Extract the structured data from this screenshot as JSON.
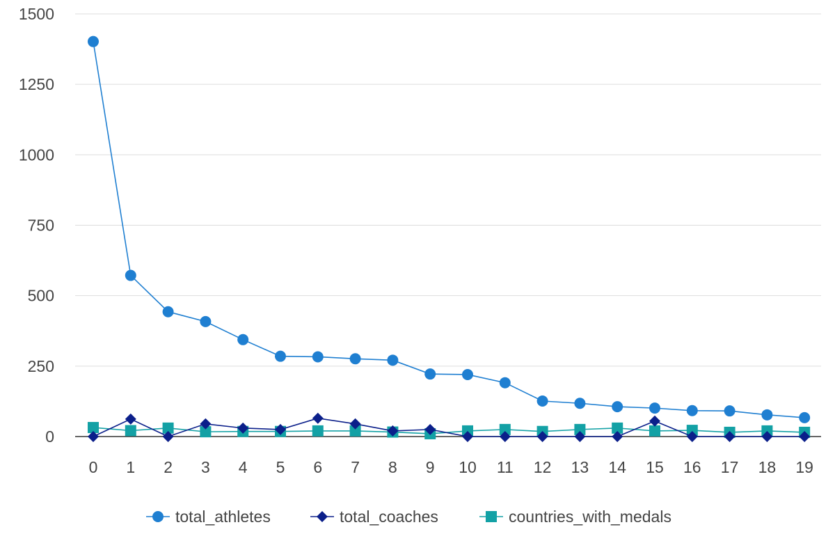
{
  "chart_data": {
    "type": "line",
    "x": [
      0,
      1,
      2,
      3,
      4,
      5,
      6,
      7,
      8,
      9,
      10,
      11,
      12,
      13,
      14,
      15,
      16,
      17,
      18,
      19
    ],
    "ylim": [
      0,
      1500
    ],
    "yticks": [
      0,
      250,
      500,
      750,
      1000,
      1250,
      1500
    ],
    "grid": "horizontal",
    "legend_position": "bottom",
    "series": [
      {
        "name": "total_athletes",
        "color": "#1f7fd1",
        "marker": "circle",
        "values": [
          1402,
          572,
          443,
          408,
          344,
          285,
          283,
          276,
          271,
          222,
          220,
          191,
          126,
          118,
          106,
          101,
          92,
          91,
          77,
          67
        ]
      },
      {
        "name": "total_coaches",
        "color": "#0b1f8a",
        "marker": "diamond",
        "values": [
          0,
          62,
          0,
          45,
          30,
          25,
          65,
          45,
          20,
          25,
          0,
          0,
          0,
          0,
          0,
          55,
          0,
          0,
          0,
          0
        ]
      },
      {
        "name": "countries_with_medals",
        "color": "#13a1a5",
        "marker": "square",
        "values": [
          32,
          21,
          30,
          17,
          18,
          18,
          20,
          20,
          16,
          10,
          20,
          25,
          18,
          25,
          30,
          20,
          22,
          15,
          20,
          15
        ]
      }
    ]
  }
}
